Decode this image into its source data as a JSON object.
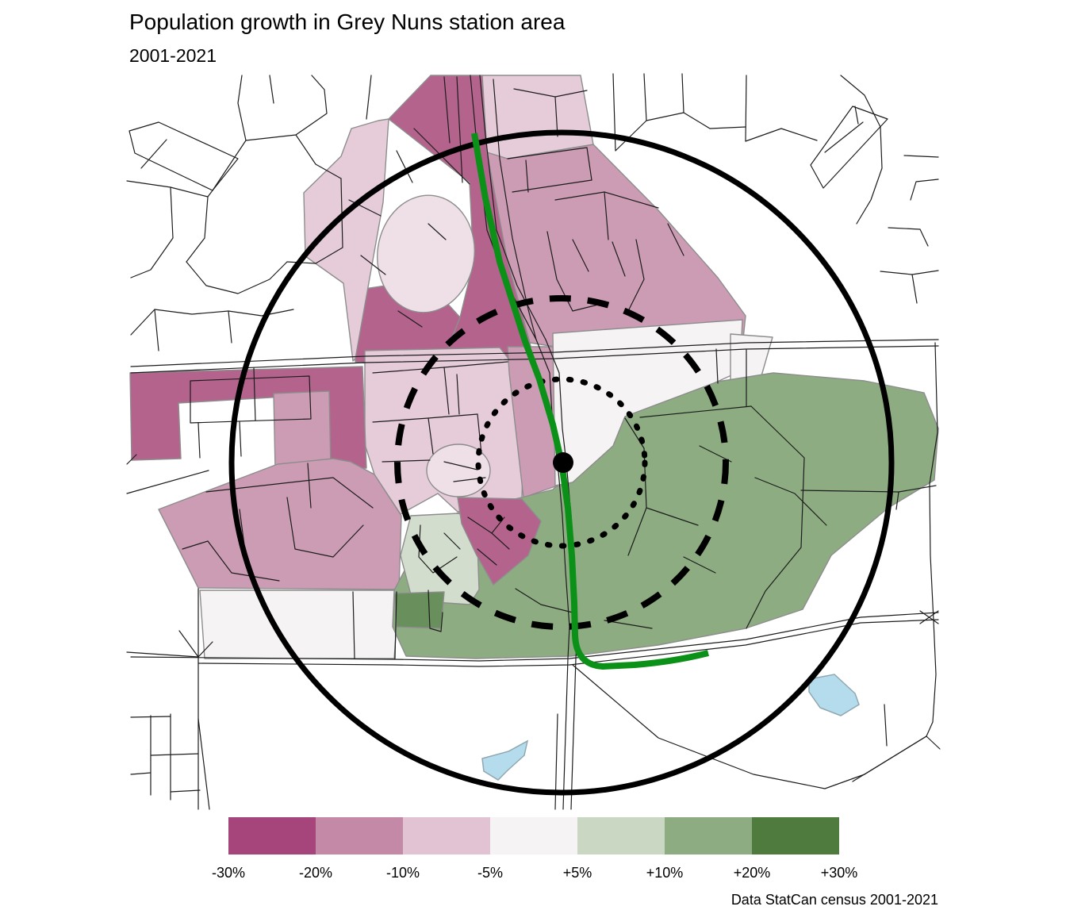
{
  "header": {
    "title": "Population growth in Grey Nuns station area",
    "subtitle": "2001-2021"
  },
  "caption": "Data StatCan census 2001-2021",
  "legend": {
    "labels": [
      "-30%",
      "-20%",
      "-10%",
      "-5%",
      "+5%",
      "+10%",
      "+20%",
      "+30%"
    ],
    "colors": [
      "#a5457b",
      "#c389a6",
      "#e2c3d3",
      "#f5f3f4",
      "#c9d7c3",
      "#8eac82",
      "#4f7b3f"
    ]
  },
  "map": {
    "icons": [
      "station-dot",
      "transit-line",
      "walkshed-ring-outer",
      "walkshed-ring-middle",
      "walkshed-ring-inner",
      "lake",
      "road-network"
    ],
    "colors": {
      "transit_line": "#0c9118",
      "decline_strong": "#b4648c",
      "decline_medium": "#cc9cb4",
      "decline_light": "#e6ccd9",
      "stable": "#f5f3f4",
      "growth_light": "#d3ddcd",
      "growth_medium": "#8eac82",
      "growth_strong": "#698f5c",
      "water": "#b5dcec"
    }
  }
}
